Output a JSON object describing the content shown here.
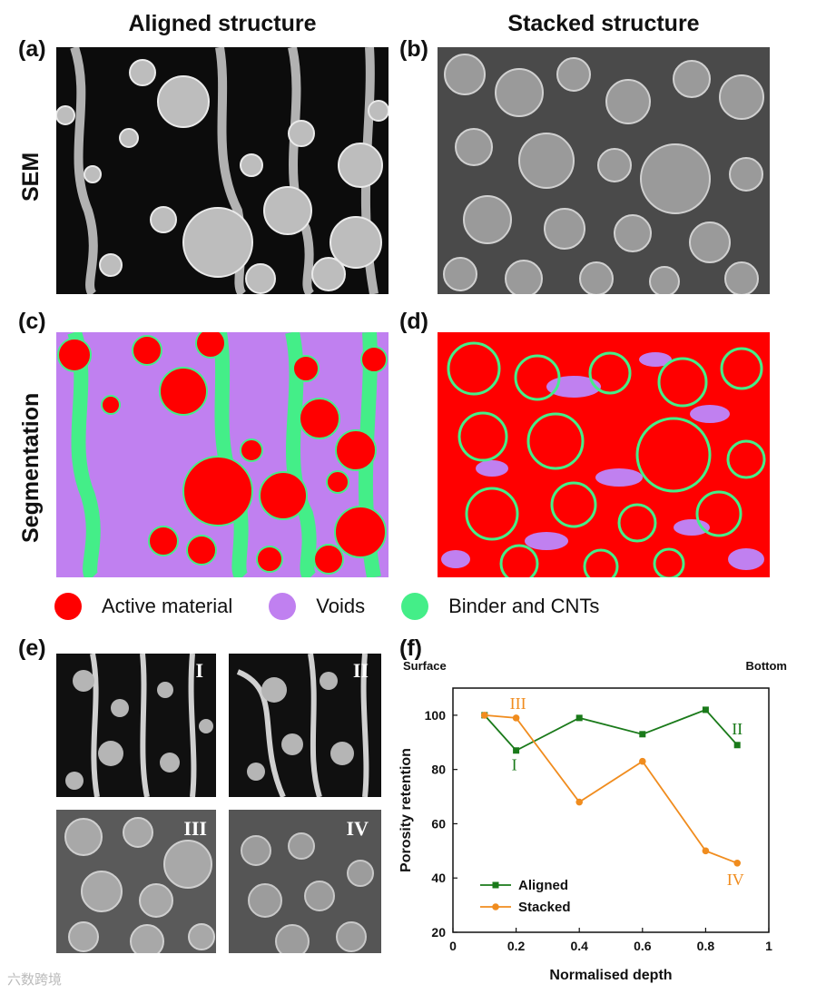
{
  "columns": {
    "aligned": "Aligned structure",
    "stacked": "Stacked structure"
  },
  "row_labels": {
    "sem": "SEM",
    "segmentation": "Segmentation"
  },
  "panel_labels": {
    "a": "(a)",
    "b": "(b)",
    "c": "(c)",
    "d": "(d)",
    "e": "(e)",
    "f": "(f)"
  },
  "legend": [
    {
      "label": "Active material",
      "color": "#ff0000"
    },
    {
      "label": "Voids",
      "color": "#c080f0"
    },
    {
      "label": "Binder and CNTs",
      "color": "#44ee88"
    }
  ],
  "inset_labels": [
    "I",
    "II",
    "III",
    "IV"
  ],
  "watermark": "六数跨境",
  "chart_data": {
    "type": "line",
    "title": "",
    "xlabel": "Normalised depth",
    "ylabel": "Porosity retention",
    "top_left_note": "Surface",
    "top_right_note": "Bottom",
    "xlim": [
      0,
      1
    ],
    "ylim": [
      20,
      110
    ],
    "x_ticks": [
      "0",
      "0.2",
      "0.4",
      "0.6",
      "0.8",
      "1"
    ],
    "y_ticks": [
      "20",
      "40",
      "60",
      "80",
      "100"
    ],
    "series": [
      {
        "name": "Aligned",
        "color": "#1a7a1a",
        "marker": "square",
        "x": [
          0.1,
          0.2,
          0.4,
          0.6,
          0.8,
          0.9
        ],
        "y": [
          100,
          87,
          99,
          93,
          102,
          89
        ]
      },
      {
        "name": "Stacked",
        "color": "#f08c1e",
        "marker": "circle",
        "x": [
          0.1,
          0.2,
          0.4,
          0.6,
          0.8,
          0.9
        ],
        "y": [
          100,
          99,
          68,
          83,
          50,
          45.5
        ]
      }
    ],
    "annotations": [
      {
        "text": "I",
        "color": "#1a7a1a",
        "x": 0.2,
        "y": 87
      },
      {
        "text": "II",
        "color": "#1a7a1a",
        "x": 0.9,
        "y": 89
      },
      {
        "text": "III",
        "color": "#f08c1e",
        "x": 0.2,
        "y": 99
      },
      {
        "text": "IV",
        "color": "#f08c1e",
        "x": 0.9,
        "y": 45.5
      }
    ],
    "legend_position": "bottom-left"
  }
}
